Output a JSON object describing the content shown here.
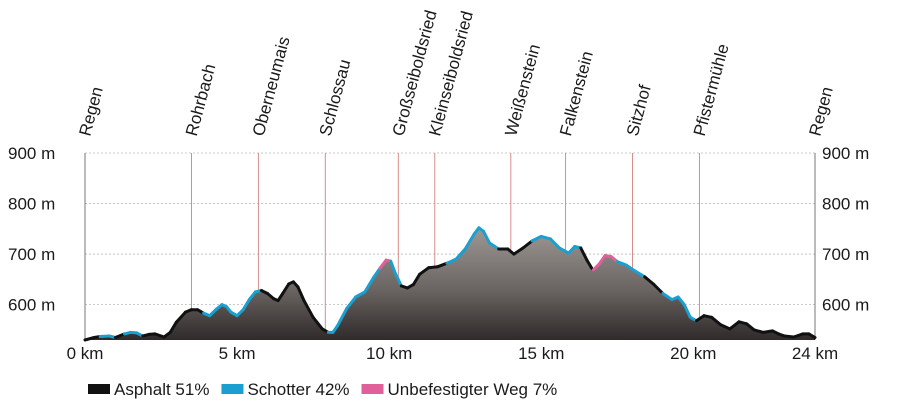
{
  "chart_data": {
    "type": "area",
    "title": "",
    "xlabel": "",
    "ylabel": "",
    "xlim": [
      0,
      24
    ],
    "ylim": [
      530,
      900
    ],
    "x_unit": "km",
    "y_unit": "m",
    "x_ticks": [
      0,
      5,
      10,
      15,
      20,
      24
    ],
    "x_tick_labels": [
      "0 km",
      "5 km",
      "10 km",
      "15 km",
      "20 km",
      "24 km"
    ],
    "y_ticks": [
      600,
      700,
      800,
      900
    ],
    "y_tick_labels": [
      "600 m",
      "700 m",
      "800 m",
      "900 m"
    ],
    "grid": true,
    "waypoints": [
      {
        "name": "Regen",
        "km": 0
      },
      {
        "name": "Rohrbach",
        "km": 3.5
      },
      {
        "name": "Oberneumais",
        "km": 5.7
      },
      {
        "name": "Schlossau",
        "km": 7.9
      },
      {
        "name": "Großseiboldsried",
        "km": 10.3
      },
      {
        "name": "Kleinseiboldsried",
        "km": 11.5
      },
      {
        "name": "Weißenstein",
        "km": 14.0
      },
      {
        "name": "Falkenstein",
        "km": 15.8
      },
      {
        "name": "Sitzhof",
        "km": 18.0
      },
      {
        "name": "Pfistermühle",
        "km": 20.2
      },
      {
        "name": "Regen",
        "km": 24
      }
    ],
    "surface_colors": {
      "asphalt": "#111111",
      "schotter": "#1a9fd0",
      "unbefestigt": "#e0609a"
    },
    "legend": [
      {
        "key": "asphalt",
        "label": "Asphalt 51%"
      },
      {
        "key": "schotter",
        "label": "Schotter 42%"
      },
      {
        "key": "unbefestigt",
        "label": "Unbefestigter Weg 7%"
      }
    ],
    "legend_position": "bottom-left",
    "profile": [
      {
        "x": 0.0,
        "y": 530,
        "s": "asphalt"
      },
      {
        "x": 0.3,
        "y": 535,
        "s": "asphalt"
      },
      {
        "x": 0.5,
        "y": 537,
        "s": "schotter"
      },
      {
        "x": 0.8,
        "y": 538,
        "s": "schotter"
      },
      {
        "x": 1.0,
        "y": 535,
        "s": "asphalt"
      },
      {
        "x": 1.3,
        "y": 542,
        "s": "schotter"
      },
      {
        "x": 1.5,
        "y": 545,
        "s": "schotter"
      },
      {
        "x": 1.7,
        "y": 544,
        "s": "schotter"
      },
      {
        "x": 1.9,
        "y": 538,
        "s": "asphalt"
      },
      {
        "x": 2.1,
        "y": 541,
        "s": "asphalt"
      },
      {
        "x": 2.3,
        "y": 542,
        "s": "asphalt"
      },
      {
        "x": 2.6,
        "y": 536,
        "s": "asphalt"
      },
      {
        "x": 2.8,
        "y": 545,
        "s": "asphalt"
      },
      {
        "x": 3.0,
        "y": 565,
        "s": "asphalt"
      },
      {
        "x": 3.3,
        "y": 585,
        "s": "asphalt"
      },
      {
        "x": 3.5,
        "y": 590,
        "s": "asphalt"
      },
      {
        "x": 3.7,
        "y": 590,
        "s": "asphalt"
      },
      {
        "x": 3.9,
        "y": 583,
        "s": "schotter"
      },
      {
        "x": 4.1,
        "y": 578,
        "s": "schotter"
      },
      {
        "x": 4.3,
        "y": 590,
        "s": "schotter"
      },
      {
        "x": 4.5,
        "y": 600,
        "s": "schotter"
      },
      {
        "x": 4.65,
        "y": 596,
        "s": "schotter"
      },
      {
        "x": 4.8,
        "y": 585,
        "s": "schotter"
      },
      {
        "x": 5.0,
        "y": 578,
        "s": "schotter"
      },
      {
        "x": 5.2,
        "y": 590,
        "s": "schotter"
      },
      {
        "x": 5.4,
        "y": 610,
        "s": "schotter"
      },
      {
        "x": 5.6,
        "y": 625,
        "s": "schotter"
      },
      {
        "x": 5.8,
        "y": 628,
        "s": "asphalt"
      },
      {
        "x": 6.0,
        "y": 622,
        "s": "asphalt"
      },
      {
        "x": 6.2,
        "y": 612,
        "s": "asphalt"
      },
      {
        "x": 6.35,
        "y": 608,
        "s": "asphalt"
      },
      {
        "x": 6.5,
        "y": 622,
        "s": "asphalt"
      },
      {
        "x": 6.7,
        "y": 641,
        "s": "asphalt"
      },
      {
        "x": 6.85,
        "y": 645,
        "s": "asphalt"
      },
      {
        "x": 7.0,
        "y": 635,
        "s": "asphalt"
      },
      {
        "x": 7.2,
        "y": 608,
        "s": "asphalt"
      },
      {
        "x": 7.5,
        "y": 575,
        "s": "asphalt"
      },
      {
        "x": 7.8,
        "y": 552,
        "s": "asphalt"
      },
      {
        "x": 8.0,
        "y": 545,
        "s": "schotter"
      },
      {
        "x": 8.15,
        "y": 545,
        "s": "schotter"
      },
      {
        "x": 8.3,
        "y": 558,
        "s": "schotter"
      },
      {
        "x": 8.6,
        "y": 592,
        "s": "schotter"
      },
      {
        "x": 8.9,
        "y": 615,
        "s": "schotter"
      },
      {
        "x": 9.2,
        "y": 625,
        "s": "schotter"
      },
      {
        "x": 9.5,
        "y": 655,
        "s": "schotter"
      },
      {
        "x": 9.7,
        "y": 672,
        "s": "unbefestigt"
      },
      {
        "x": 9.9,
        "y": 688,
        "s": "unbefestigt"
      },
      {
        "x": 10.05,
        "y": 686,
        "s": "schotter"
      },
      {
        "x": 10.2,
        "y": 662,
        "s": "schotter"
      },
      {
        "x": 10.4,
        "y": 637,
        "s": "asphalt"
      },
      {
        "x": 10.6,
        "y": 633,
        "s": "asphalt"
      },
      {
        "x": 10.8,
        "y": 640,
        "s": "asphalt"
      },
      {
        "x": 11.0,
        "y": 660,
        "s": "asphalt"
      },
      {
        "x": 11.3,
        "y": 673,
        "s": "asphalt"
      },
      {
        "x": 11.6,
        "y": 675,
        "s": "asphalt"
      },
      {
        "x": 11.9,
        "y": 682,
        "s": "schotter"
      },
      {
        "x": 12.2,
        "y": 690,
        "s": "schotter"
      },
      {
        "x": 12.5,
        "y": 710,
        "s": "schotter"
      },
      {
        "x": 12.8,
        "y": 740,
        "s": "schotter"
      },
      {
        "x": 12.95,
        "y": 752,
        "s": "schotter"
      },
      {
        "x": 13.1,
        "y": 745,
        "s": "schotter"
      },
      {
        "x": 13.3,
        "y": 722,
        "s": "schotter"
      },
      {
        "x": 13.6,
        "y": 710,
        "s": "asphalt"
      },
      {
        "x": 13.9,
        "y": 710,
        "s": "asphalt"
      },
      {
        "x": 14.1,
        "y": 700,
        "s": "asphalt"
      },
      {
        "x": 14.4,
        "y": 712,
        "s": "asphalt"
      },
      {
        "x": 14.7,
        "y": 726,
        "s": "schotter"
      },
      {
        "x": 15.0,
        "y": 735,
        "s": "schotter"
      },
      {
        "x": 15.3,
        "y": 730,
        "s": "schotter"
      },
      {
        "x": 15.6,
        "y": 712,
        "s": "schotter"
      },
      {
        "x": 15.9,
        "y": 702,
        "s": "schotter"
      },
      {
        "x": 16.1,
        "y": 715,
        "s": "schotter"
      },
      {
        "x": 16.3,
        "y": 712,
        "s": "asphalt"
      },
      {
        "x": 16.5,
        "y": 688,
        "s": "asphalt"
      },
      {
        "x": 16.7,
        "y": 668,
        "s": "unbefestigt"
      },
      {
        "x": 16.9,
        "y": 680,
        "s": "unbefestigt"
      },
      {
        "x": 17.1,
        "y": 697,
        "s": "unbefestigt"
      },
      {
        "x": 17.3,
        "y": 695,
        "s": "unbefestigt"
      },
      {
        "x": 17.5,
        "y": 685,
        "s": "schotter"
      },
      {
        "x": 17.8,
        "y": 678,
        "s": "schotter"
      },
      {
        "x": 18.1,
        "y": 666,
        "s": "schotter"
      },
      {
        "x": 18.4,
        "y": 655,
        "s": "asphalt"
      },
      {
        "x": 18.7,
        "y": 640,
        "s": "asphalt"
      },
      {
        "x": 19.0,
        "y": 622,
        "s": "schotter"
      },
      {
        "x": 19.3,
        "y": 610,
        "s": "schotter"
      },
      {
        "x": 19.5,
        "y": 615,
        "s": "schotter"
      },
      {
        "x": 19.7,
        "y": 600,
        "s": "schotter"
      },
      {
        "x": 19.9,
        "y": 575,
        "s": "schotter"
      },
      {
        "x": 20.1,
        "y": 568,
        "s": "asphalt"
      },
      {
        "x": 20.35,
        "y": 578,
        "s": "asphalt"
      },
      {
        "x": 20.6,
        "y": 575,
        "s": "asphalt"
      },
      {
        "x": 20.9,
        "y": 560,
        "s": "asphalt"
      },
      {
        "x": 21.2,
        "y": 552,
        "s": "asphalt"
      },
      {
        "x": 21.5,
        "y": 566,
        "s": "asphalt"
      },
      {
        "x": 21.75,
        "y": 562,
        "s": "asphalt"
      },
      {
        "x": 22.0,
        "y": 550,
        "s": "asphalt"
      },
      {
        "x": 22.3,
        "y": 545,
        "s": "asphalt"
      },
      {
        "x": 22.6,
        "y": 548,
        "s": "asphalt"
      },
      {
        "x": 22.8,
        "y": 542,
        "s": "asphalt"
      },
      {
        "x": 23.0,
        "y": 538,
        "s": "asphalt"
      },
      {
        "x": 23.3,
        "y": 536,
        "s": "asphalt"
      },
      {
        "x": 23.6,
        "y": 542,
        "s": "asphalt"
      },
      {
        "x": 23.8,
        "y": 542,
        "s": "asphalt"
      },
      {
        "x": 24.0,
        "y": 535,
        "s": "asphalt"
      }
    ]
  }
}
